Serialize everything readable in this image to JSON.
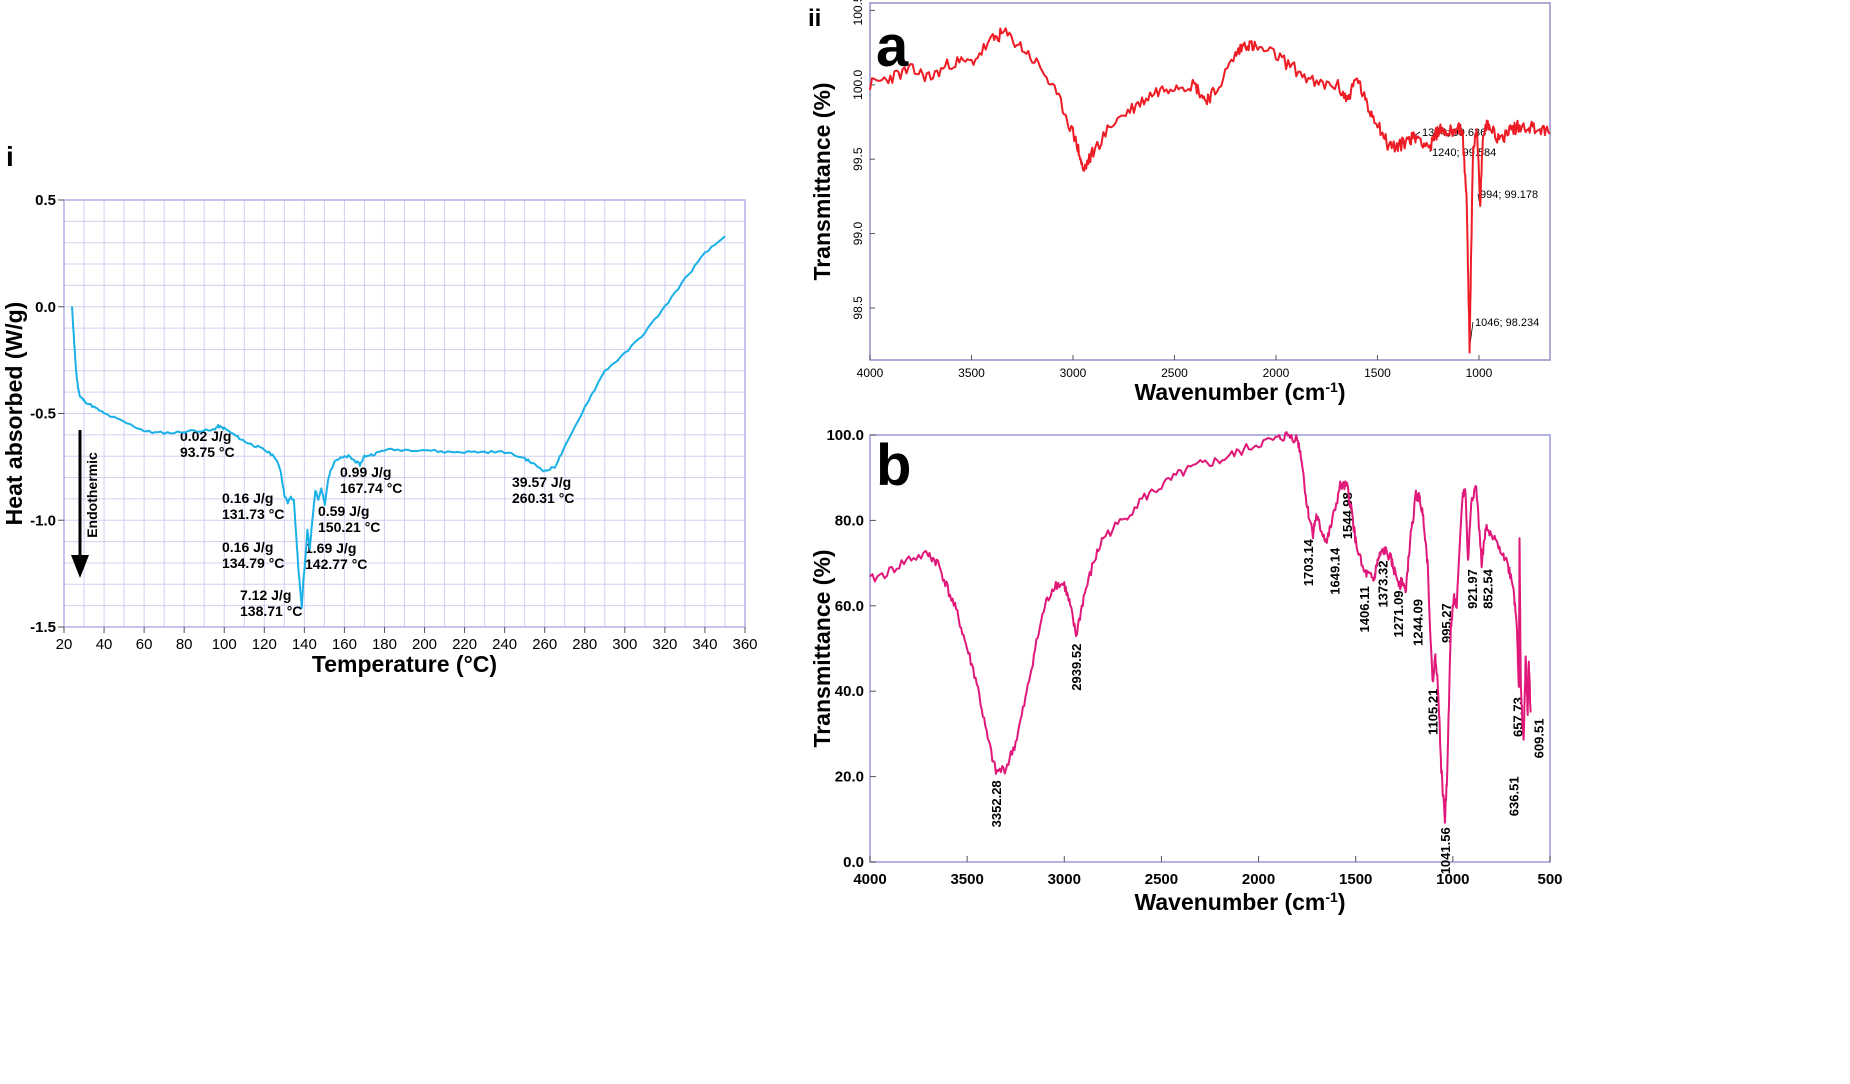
{
  "panels": {
    "i": "i",
    "ii": "ii",
    "a": "a",
    "b": "b"
  },
  "colors": {
    "dsc": "#1ab0e8",
    "ftir_a": "#ee1c24",
    "ftir_b": "#e0187a",
    "frame_dsc": "#b0b0e8",
    "frame_a": "#9090c8",
    "frame_b": "#9a9ad8",
    "grid": "#d0d0f0"
  },
  "chart_data": [
    {
      "id": "dsc",
      "type": "line",
      "title": "",
      "xlabel": "Temperature (°C)",
      "ylabel": "Heat absorbed (W/g)",
      "xlim": [
        20,
        360
      ],
      "ylim": [
        -1.5,
        0.5
      ],
      "xticks": [
        20,
        40,
        60,
        80,
        100,
        120,
        140,
        160,
        180,
        200,
        220,
        240,
        260,
        280,
        300,
        320,
        340,
        360
      ],
      "yticks": [
        0.5,
        0.0,
        -0.5,
        -1.0,
        -1.5
      ],
      "ytick_labels": [
        "0.5",
        "0.0",
        "-0.5",
        "-1.0",
        "-1.5"
      ],
      "grid": true,
      "endothermic_label": "Endothermic",
      "series": [
        {
          "name": "DSC",
          "x": [
            24,
            25,
            26,
            27,
            28,
            30,
            35,
            40,
            50,
            60,
            65,
            75,
            85,
            93.75,
            97,
            100,
            105,
            110,
            115,
            120,
            125,
            128,
            130,
            131.73,
            133,
            134.79,
            136,
            137,
            138.71,
            139.5,
            140.5,
            141.5,
            142.77,
            144,
            145.5,
            147,
            148.5,
            150.21,
            152,
            155,
            158,
            162,
            165,
            167.74,
            170,
            175,
            180,
            190,
            200,
            210,
            220,
            230,
            240,
            250,
            255,
            260.31,
            265,
            270,
            280,
            290,
            300,
            310,
            320,
            330,
            340,
            350
          ],
          "y": [
            0.0,
            -0.15,
            -0.3,
            -0.38,
            -0.42,
            -0.44,
            -0.47,
            -0.5,
            -0.54,
            -0.58,
            -0.59,
            -0.59,
            -0.58,
            -0.58,
            -0.56,
            -0.57,
            -0.6,
            -0.63,
            -0.65,
            -0.67,
            -0.7,
            -0.76,
            -0.88,
            -0.92,
            -0.89,
            -0.91,
            -1.08,
            -1.22,
            -1.41,
            -1.28,
            -1.18,
            -1.05,
            -1.13,
            -1.0,
            -0.86,
            -0.9,
            -0.85,
            -0.93,
            -0.8,
            -0.72,
            -0.71,
            -0.7,
            -0.72,
            -0.74,
            -0.7,
            -0.69,
            -0.67,
            -0.67,
            -0.67,
            -0.68,
            -0.68,
            -0.68,
            -0.68,
            -0.71,
            -0.74,
            -0.77,
            -0.75,
            -0.66,
            -0.47,
            -0.3,
            -0.22,
            -0.12,
            0.0,
            0.13,
            0.25,
            0.33
          ]
        }
      ],
      "annotations": [
        {
          "text": [
            "0.02 J/g",
            "93.75 °C"
          ],
          "x": 93.75,
          "y": -0.58
        },
        {
          "text": [
            "0.16 J/g",
            "131.73 °C"
          ],
          "x": 131.73,
          "y": -0.92
        },
        {
          "text": [
            "0.16 J/g",
            "134.79 °C"
          ],
          "x": 134.79,
          "y": -0.91
        },
        {
          "text": [
            "7.12 J/g",
            "138.71 °C"
          ],
          "x": 138.71,
          "y": -1.41
        },
        {
          "text": [
            "1.69 J/g",
            "142.77 °C"
          ],
          "x": 142.77,
          "y": -1.13
        },
        {
          "text": [
            "0.59 J/g",
            "150.21 °C"
          ],
          "x": 150.21,
          "y": -0.93
        },
        {
          "text": [
            "0.99 J/g",
            "167.74 °C"
          ],
          "x": 167.74,
          "y": -0.74
        },
        {
          "text": [
            "39.57 J/g",
            "260.31 °C"
          ],
          "x": 260.31,
          "y": -0.77
        }
      ]
    },
    {
      "id": "ftir_a",
      "type": "line",
      "title": "",
      "xlabel": "Wavenumber (cm",
      "xlabel_sup": "-1",
      "xlabel_close": ")",
      "ylabel": "Transmittance (%)",
      "xlim": [
        4000,
        650
      ],
      "ylim": [
        98.15,
        100.55
      ],
      "xticks": [
        4000,
        3500,
        3000,
        2500,
        2000,
        1500,
        1000
      ],
      "yticks": [
        100.5,
        100.0,
        99.5,
        99.0,
        98.5
      ],
      "ytick_labels": [
        "100.5",
        "100.0",
        "99.5",
        "99.0",
        "98.5"
      ],
      "grid": false,
      "series": [
        {
          "name": "FTIR a",
          "x": [
            4000,
            3900,
            3800,
            3700,
            3600,
            3500,
            3400,
            3340,
            3250,
            3150,
            3050,
            2980,
            2950,
            2900,
            2800,
            2700,
            2600,
            2500,
            2400,
            2350,
            2300,
            2200,
            2150,
            2100,
            2000,
            1900,
            1800,
            1700,
            1650,
            1600,
            1550,
            1500,
            1450,
            1400,
            1344,
            1300,
            1240,
            1200,
            1150,
            1100,
            1080,
            1060,
            1046,
            1030,
            1010,
            994,
            980,
            950,
            900,
            850,
            800,
            750,
            700,
            650
          ],
          "y": [
            100.0,
            100.05,
            100.1,
            100.05,
            100.15,
            100.15,
            100.3,
            100.35,
            100.25,
            100.1,
            99.85,
            99.6,
            99.42,
            99.55,
            99.75,
            99.85,
            99.95,
            100.0,
            100.0,
            99.9,
            99.95,
            100.2,
            100.28,
            100.25,
            100.2,
            100.1,
            100.0,
            100.0,
            99.9,
            100.05,
            99.85,
            99.75,
            99.6,
            99.58,
            99.64,
            99.65,
            99.58,
            99.7,
            99.68,
            99.72,
            99.65,
            99.2,
            98.23,
            99.55,
            99.72,
            99.18,
            99.68,
            99.75,
            99.62,
            99.7,
            99.72,
            99.72,
            99.7,
            99.68
          ]
        }
      ],
      "annotations": [
        {
          "text": "1344; 99.636",
          "x": 1344,
          "y": 99.636
        },
        {
          "text": "1240; 99.584",
          "x": 1240,
          "y": 99.584
        },
        {
          "text": "994; 99.178",
          "x": 994,
          "y": 99.178
        },
        {
          "text": "1046; 98.234",
          "x": 1046,
          "y": 98.234
        }
      ]
    },
    {
      "id": "ftir_b",
      "type": "line",
      "title": "",
      "xlabel": "Wavenumber (cm",
      "xlabel_sup": "-1",
      "xlabel_close": ")",
      "ylabel": "Transmittance (%)",
      "xlim": [
        4000,
        500
      ],
      "ylim": [
        0,
        100
      ],
      "xticks": [
        4000,
        3500,
        3000,
        2500,
        2000,
        1500,
        1000,
        500
      ],
      "yticks": [
        0,
        20,
        40,
        60,
        80,
        100
      ],
      "ytick_labels": [
        "0.0",
        "20.0",
        "40.0",
        "60.0",
        "80.0",
        "100.0"
      ],
      "grid": false,
      "series": [
        {
          "name": "FTIR b",
          "x": [
            4000,
            3900,
            3800,
            3700,
            3650,
            3600,
            3550,
            3500,
            3450,
            3400,
            3352,
            3300,
            3250,
            3200,
            3150,
            3100,
            3050,
            3000,
            2970,
            2939,
            2900,
            2850,
            2800,
            2700,
            2600,
            2500,
            2400,
            2300,
            2200,
            2100,
            2000,
            1900,
            1850,
            1800,
            1780,
            1750,
            1720,
            1703,
            1680,
            1649,
            1620,
            1580,
            1545,
            1520,
            1500,
            1460,
            1430,
            1406,
            1390,
            1373,
            1350,
            1320,
            1300,
            1271,
            1260,
            1244,
            1220,
            1190,
            1170,
            1150,
            1130,
            1105,
            1090,
            1075,
            1060,
            1041,
            1030,
            1010,
            995,
            980,
            950,
            935,
            922,
            905,
            880,
            852,
            830,
            800,
            760,
            720,
            690,
            670,
            660,
            657,
            650,
            636,
            625,
            615,
            609,
            600
          ],
          "y": [
            66,
            68,
            71,
            72,
            70,
            64,
            58,
            50,
            42,
            30,
            21,
            22,
            28,
            38,
            50,
            60,
            65,
            65,
            60,
            53,
            62,
            70,
            76,
            80,
            85,
            88,
            91,
            93,
            94,
            96,
            98,
            99,
            100,
            99,
            95,
            83,
            77,
            81,
            78,
            75,
            80,
            88,
            88,
            82,
            75,
            68,
            67,
            66,
            70,
            72,
            73,
            71,
            68,
            65,
            66,
            63,
            75,
            86,
            85,
            80,
            70,
            42,
            48,
            40,
            22,
            10,
            20,
            55,
            62,
            60,
            86,
            87,
            70,
            85,
            88,
            70,
            78,
            76,
            74,
            70,
            65,
            55,
            40,
            76,
            40,
            28,
            48,
            35,
            47,
            35
          ]
        }
      ],
      "annotations": [
        {
          "text": "3352.28",
          "x": 3352.28,
          "y": 21
        },
        {
          "text": "2939.52",
          "x": 2939.52,
          "y": 53
        },
        {
          "text": "1703.14",
          "x": 1703.14,
          "y": 77
        },
        {
          "text": "1649.14",
          "x": 1649.14,
          "y": 75
        },
        {
          "text": "1544.98",
          "x": 1544.98,
          "y": 88
        },
        {
          "text": "1406.11",
          "x": 1406.11,
          "y": 66
        },
        {
          "text": "1373.32",
          "x": 1373.32,
          "y": 72
        },
        {
          "text": "1271.09",
          "x": 1271.09,
          "y": 65
        },
        {
          "text": "1244.09",
          "x": 1244.09,
          "y": 63
        },
        {
          "text": "1105.21",
          "x": 1105.21,
          "y": 42
        },
        {
          "text": "1041.56",
          "x": 1041.56,
          "y": 10
        },
        {
          "text": "995.27",
          "x": 995.27,
          "y": 62
        },
        {
          "text": "921.97",
          "x": 921.97,
          "y": 70
        },
        {
          "text": "852.54",
          "x": 852.54,
          "y": 70
        },
        {
          "text": "657.73",
          "x": 657.73,
          "y": 40
        },
        {
          "text": "636.51",
          "x": 636.51,
          "y": 28
        },
        {
          "text": "609.51",
          "x": 609.51,
          "y": 35
        }
      ]
    }
  ]
}
